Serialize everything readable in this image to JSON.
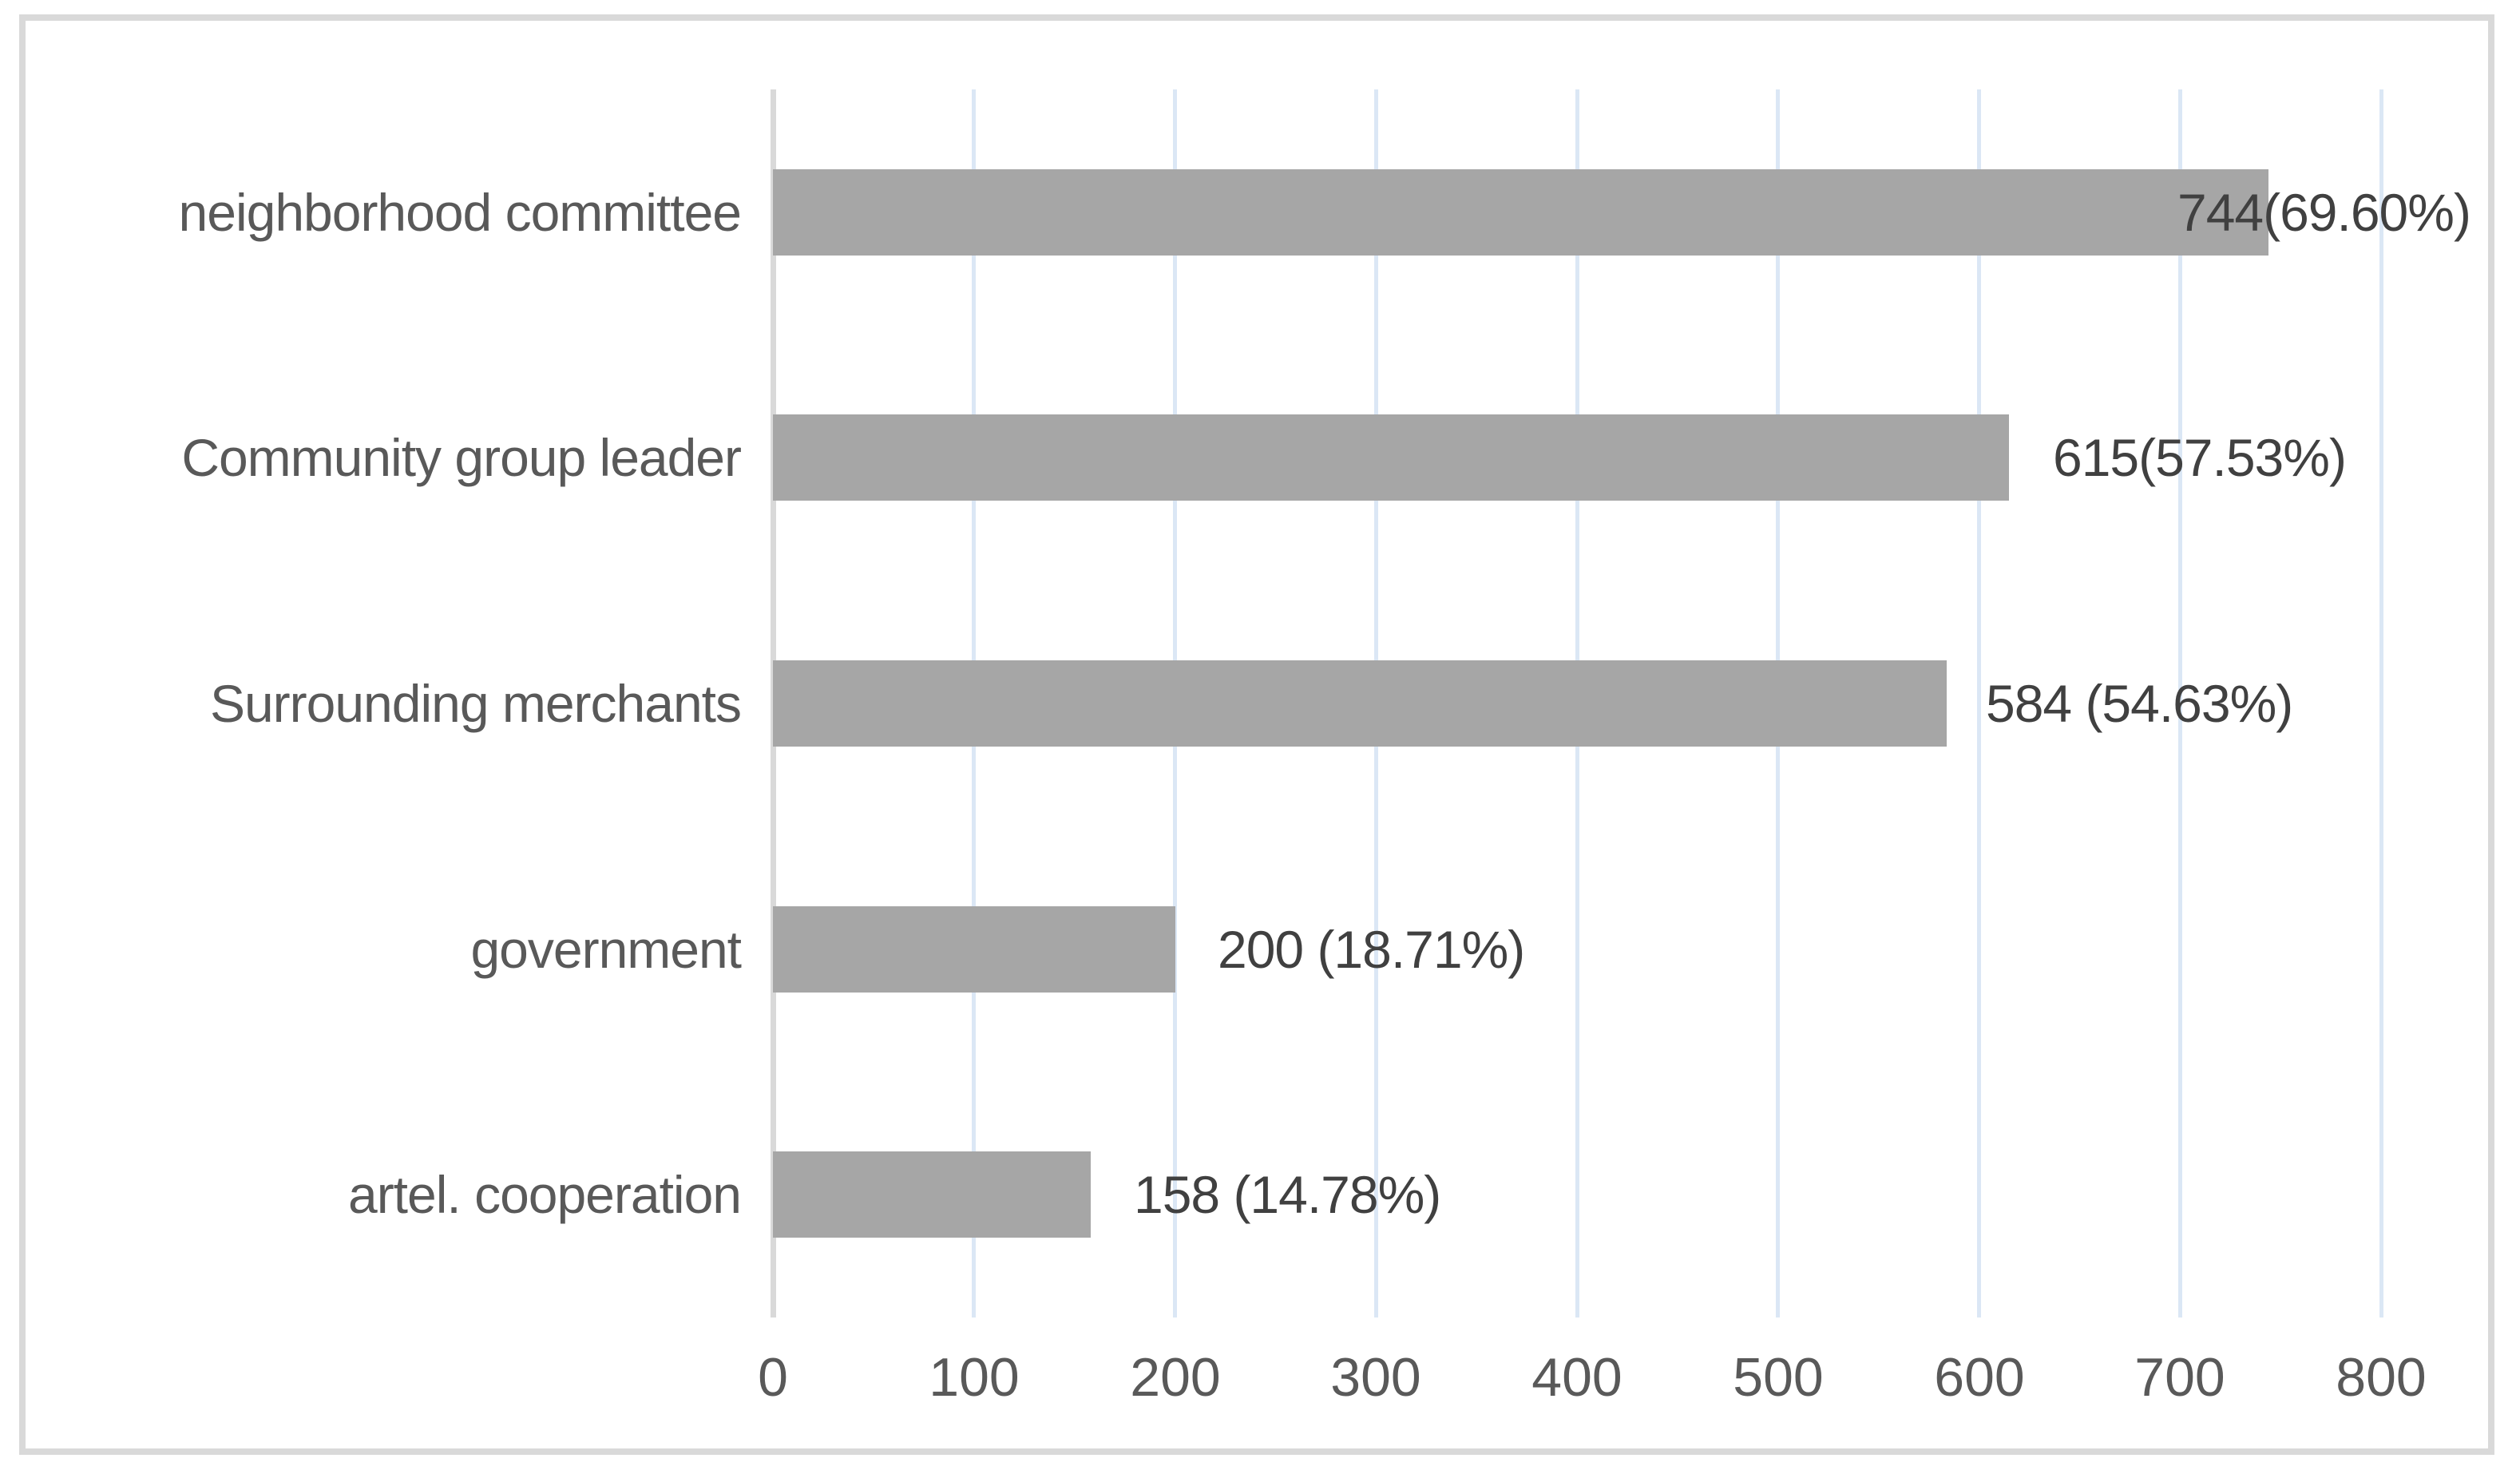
{
  "figure": {
    "background": "#ffffff",
    "frame_color": "#d9d9d9"
  },
  "chart_data": {
    "type": "bar",
    "orientation": "horizontal",
    "title": "",
    "xlabel": "",
    "ylabel": "",
    "categories": [
      "neighborhood committee",
      "Community group leader",
      "Surrounding merchants",
      "government",
      "artel. cooperation"
    ],
    "values": [
      744,
      615,
      584,
      200,
      158
    ],
    "percentages": [
      69.6,
      57.53,
      54.63,
      18.71,
      14.78
    ],
    "value_labels": [
      "744(69.60%)",
      "615(57.53%)",
      "584 (54.63%)",
      "200 (18.71%)",
      "158 (14.78%)"
    ],
    "xlim": [
      0,
      800
    ],
    "xticks": [
      0,
      100,
      200,
      300,
      400,
      500,
      600,
      700,
      800
    ],
    "xtick_labels": [
      "0",
      "100",
      "200",
      "300",
      "400",
      "500",
      "600",
      "700",
      "800"
    ],
    "grid": "vertical-gridlines-on",
    "legend": "none",
    "colors": {
      "bar": "#a6a6a6",
      "gridline": "#dbe7f5",
      "axis_line": "#d9d9d9",
      "category_text": "#595959",
      "value_text": "#404040",
      "tick_text": "#595959"
    }
  }
}
